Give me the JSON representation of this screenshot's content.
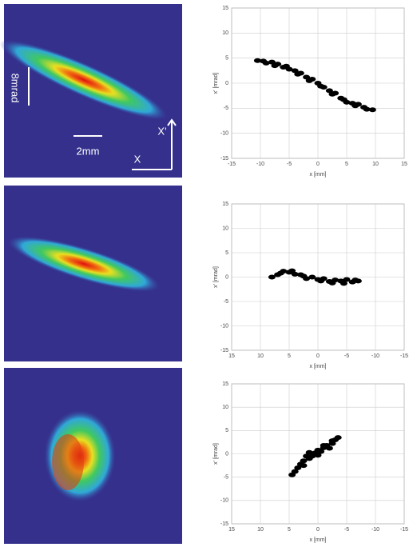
{
  "image_labels": {
    "angle_scale": "8mrad",
    "length_scale": "2mm",
    "x_prime_axis": "X'",
    "x_axis": "X"
  },
  "chart_data": [
    {
      "type": "scatter",
      "color": "#000000",
      "grid": true,
      "xlabel": "x [mm]",
      "ylabel": "x' [mrad]",
      "xlim": [
        -15,
        15
      ],
      "ylim": [
        -15,
        15
      ],
      "xticks": [
        -15,
        -10,
        -5,
        0,
        5,
        10,
        15
      ],
      "yticks": [
        -15,
        -10,
        -5,
        0,
        5,
        10,
        15
      ],
      "x": [
        -10.5,
        -9.5,
        -9,
        -8,
        -7.5,
        -7,
        -6,
        -5.5,
        -5,
        -4,
        -3.5,
        -3,
        -2,
        -1.5,
        -1,
        0,
        0.5,
        1,
        2,
        2.5,
        3,
        4,
        4.5,
        5,
        6,
        6.5,
        7,
        8,
        8.5,
        9.5
      ],
      "values": [
        4.5,
        4.4,
        4,
        4.2,
        3.5,
        3.8,
        3.2,
        3.4,
        2.8,
        2.5,
        1.8,
        2,
        1.2,
        0.5,
        0.8,
        0,
        -0.6,
        -0.8,
        -1.5,
        -2.2,
        -2,
        -3,
        -3.3,
        -3.8,
        -4,
        -4.5,
        -4.2,
        -4.8,
        -5.2,
        -5.3
      ]
    },
    {
      "type": "scatter",
      "color": "#000000",
      "grid": true,
      "xlabel": "x [mm]",
      "ylabel": "x' [mrad]",
      "xlim": [
        15,
        -15
      ],
      "ylim": [
        -15,
        15
      ],
      "xticks": [
        15,
        10,
        5,
        0,
        -5,
        -10,
        -15
      ],
      "yticks": [
        -15,
        -10,
        -5,
        0,
        5,
        10,
        15
      ],
      "x": [
        8,
        7,
        6.5,
        6,
        5,
        4.5,
        4,
        3,
        2.5,
        2,
        1,
        0,
        -0.5,
        -1,
        -2,
        -2.5,
        -3,
        -4,
        -4.5,
        -5,
        -6,
        -6.5,
        -7
      ],
      "values": [
        0,
        0.5,
        0.8,
        1.2,
        1,
        1.3,
        0.6,
        0.5,
        0.2,
        -0.3,
        0,
        -0.5,
        -0.8,
        -0.3,
        -0.9,
        -1.2,
        -0.6,
        -0.8,
        -1.3,
        -0.5,
        -1,
        -0.6,
        -0.8
      ]
    },
    {
      "type": "scatter",
      "color": "#000000",
      "grid": true,
      "xlabel": "x [mm]",
      "ylabel": "x' [mrad]",
      "xlim": [
        15,
        -15
      ],
      "ylim": [
        -15,
        15
      ],
      "xticks": [
        15,
        10,
        5,
        0,
        -5,
        -10,
        -15
      ],
      "yticks": [
        -15,
        -10,
        -5,
        0,
        5,
        10,
        15
      ],
      "x": [
        4.5,
        4,
        3.5,
        3,
        2.5,
        2,
        1.5,
        1,
        0.5,
        0,
        -0.5,
        -1,
        -1.5,
        -2,
        -2.5,
        -3,
        -3.5,
        2.5,
        1.5,
        0,
        -1,
        -2.5
      ],
      "values": [
        -4.5,
        -3.8,
        -3,
        -2.2,
        -1.5,
        -0.5,
        -1,
        -0.5,
        0.2,
        -0.3,
        0.5,
        1.3,
        1.8,
        1.2,
        2.2,
        3,
        3.5,
        -2.5,
        0.3,
        0.8,
        1.8,
        2.8
      ]
    }
  ]
}
